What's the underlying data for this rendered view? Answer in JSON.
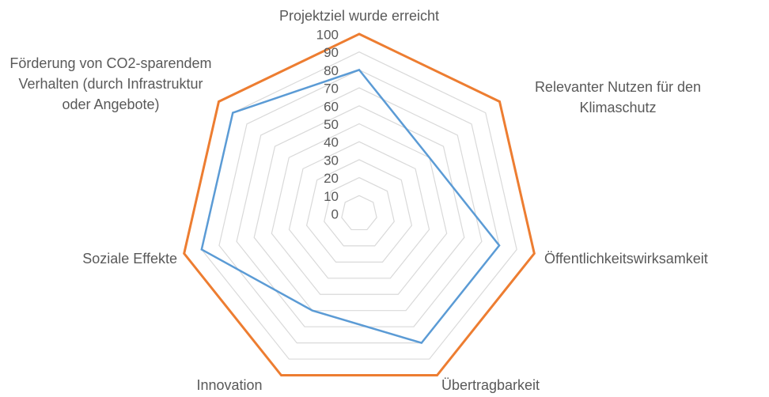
{
  "chart_data": {
    "type": "radar",
    "categories": [
      "Projektziel wurde erreicht",
      "Relevanter Nutzen für den Klimaschutz",
      "Öffentlichkeitswirksamkeit",
      "Übertragbarkeit",
      "Innovation",
      "Soziale Effekte",
      "Förderung von CO2-sparendem Verhalten (durch Infrastruktur oder Angebote)"
    ],
    "series": [
      {
        "color": "#ed7d31",
        "values": [
          100,
          100,
          100,
          100,
          100,
          100,
          100
        ]
      },
      {
        "color": "#5b9bd5",
        "values": [
          80,
          50,
          80,
          80,
          60,
          90,
          90
        ]
      }
    ],
    "ylim": [
      0,
      100
    ],
    "yticks": [
      0,
      10,
      20,
      30,
      40,
      50,
      60,
      70,
      80,
      90,
      100
    ],
    "grid": true
  }
}
